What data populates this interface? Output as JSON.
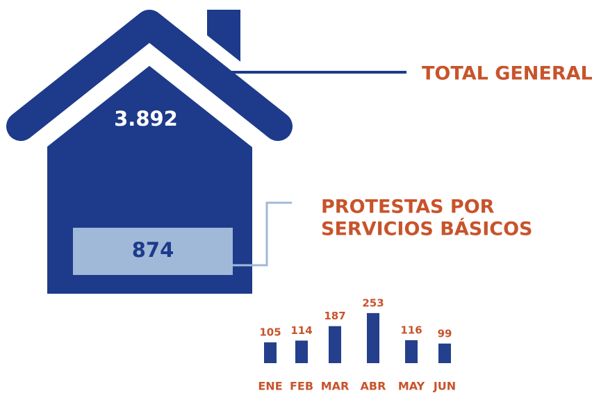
{
  "total": {
    "label": "TOTAL GENERAL",
    "value": "3.892"
  },
  "subset": {
    "label": [
      "PROTESTAS POR",
      "SERVICIOS BÁSICOS"
    ],
    "value": "874"
  },
  "chart_data": {
    "type": "bar",
    "categories": [
      "ENE",
      "FEB",
      "MAR",
      "ABR",
      "MAY",
      "JUN"
    ],
    "values": [
      105,
      114,
      187,
      253,
      116,
      99
    ],
    "color": "#243f8c"
  }
}
